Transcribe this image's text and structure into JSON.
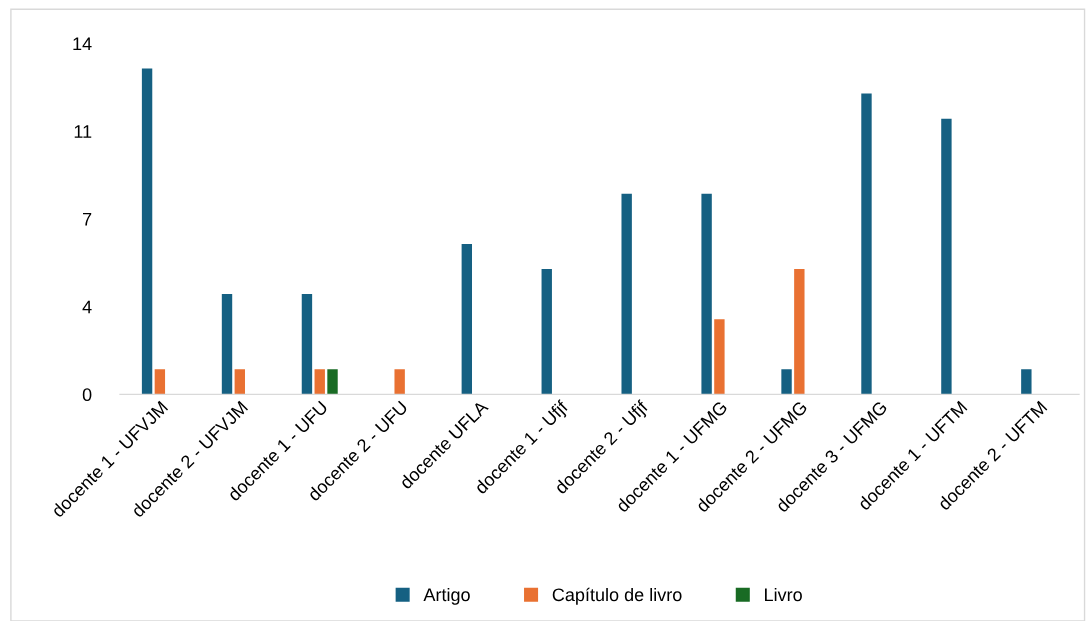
{
  "chart_data": {
    "type": "bar",
    "categories": [
      "docente 1 - UFVJM",
      "docente 2 - UFVJM",
      "docente 1 - UFU",
      "docente 2 - UFU",
      "docente UFLA",
      "docente 1 - Ufjf",
      "docente 2 - Ufjf",
      "docente 1 - UFMG",
      "docente 2 - UFMG",
      "docente 3 - UFMG",
      "docente 1 - UFTM",
      "docente 2 - UFTM"
    ],
    "series": [
      {
        "name": "Artigo",
        "color": "#156082",
        "values": [
          13,
          4,
          4,
          null,
          6,
          5,
          8,
          8,
          1,
          12,
          11,
          1
        ]
      },
      {
        "name": "Capítulo de livro",
        "color": "#e97132",
        "values": [
          1,
          1,
          1,
          1,
          null,
          null,
          null,
          3,
          5,
          null,
          null,
          null
        ]
      },
      {
        "name": "Livro",
        "color": "#196b24",
        "values": [
          null,
          null,
          1,
          null,
          null,
          null,
          null,
          null,
          null,
          null,
          null,
          null
        ]
      }
    ],
    "ylim": [
      0,
      14
    ],
    "yticks": [
      0,
      {
        "value": 3.5,
        "label": "4"
      },
      7,
      {
        "value": 10.5,
        "label": "11"
      },
      14
    ],
    "grid": false,
    "legend": "bottom"
  }
}
